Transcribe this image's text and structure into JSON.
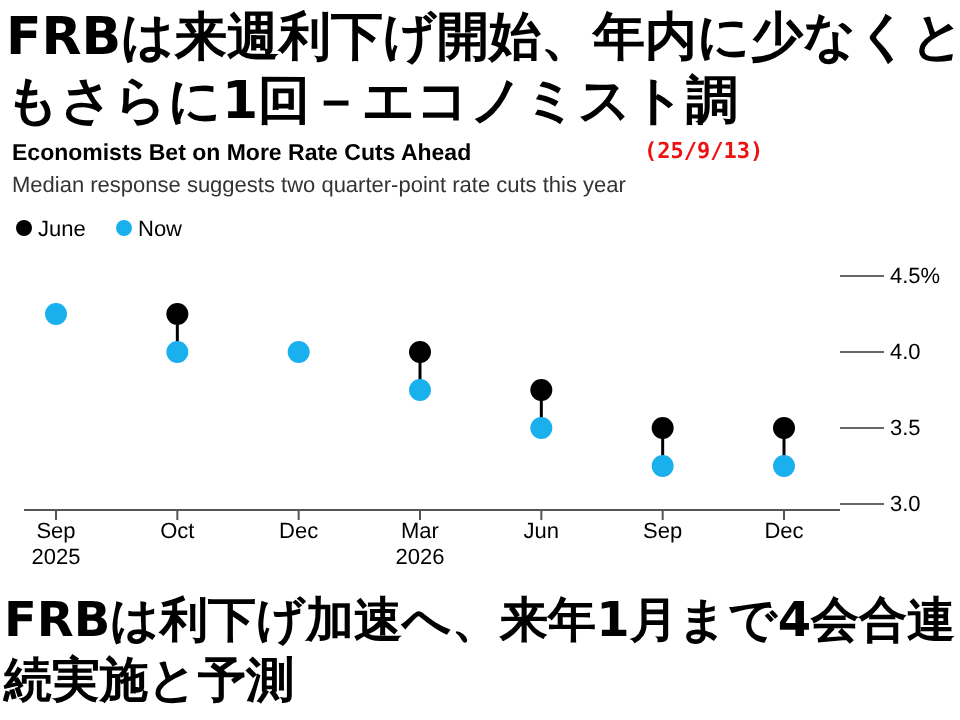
{
  "chart_data": {
    "type": "scatter",
    "title": "FRBは来週利下げ開始、年内に少なくともさらに1回－エコノミスト調",
    "subtitle": "Economists Bet on More Rate Cuts Ahead",
    "annotations": [
      "Median response suggests two quarter-point rate cuts this year",
      "(25/9/13)",
      "FRBは利下げ加速へ、来年1月まで4会合連続実施と予測"
    ],
    "categories": [
      "Sep 2025",
      "Oct",
      "Dec",
      "Mar 2026",
      "Jun",
      "Sep",
      "Dec"
    ],
    "series": [
      {
        "name": "June",
        "color": "#000000",
        "values": [
          null,
          4.25,
          null,
          4.0,
          3.75,
          3.5,
          3.5
        ]
      },
      {
        "name": "Now",
        "color": "#1ab0ee",
        "values": [
          4.25,
          4.0,
          4.0,
          3.75,
          3.5,
          3.25,
          3.25
        ]
      }
    ],
    "ylim": [
      3,
      4.5
    ],
    "yticks": [
      {
        "value": 3,
        "label": "3.0"
      },
      {
        "value": 3.5,
        "label": "3.5"
      },
      {
        "value": 4,
        "label": "4.0"
      },
      {
        "value": 4.5,
        "label": "4.5%"
      }
    ],
    "legend": "top left",
    "marker": "circle"
  }
}
